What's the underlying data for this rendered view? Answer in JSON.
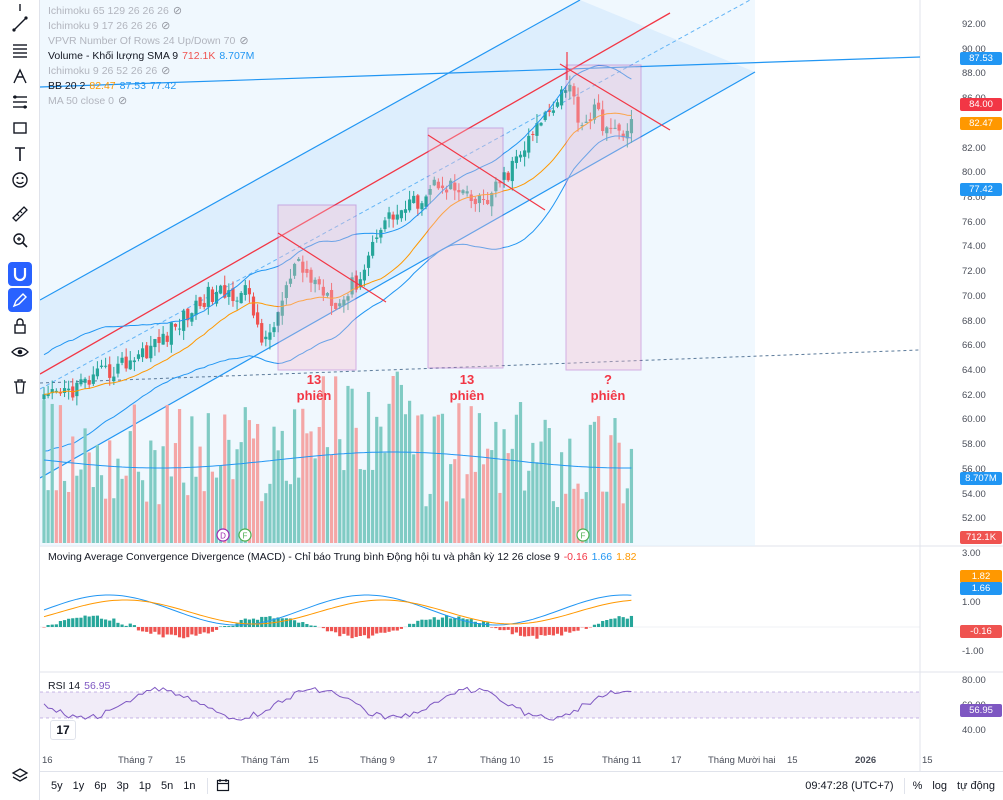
{
  "legend": {
    "items": [
      {
        "name": "Ichimoku 65 129 26 26 26",
        "dim": true
      },
      {
        "name": "Ichimoku 9 17 26 26 26",
        "dim": true
      },
      {
        "name": "VPVR Number Of Rows 24 Up/Down 70",
        "dim": true
      },
      {
        "name": "Volume - Khối lượng SMA 9",
        "dim": false,
        "v1": "712.1K",
        "v2": "8.707M"
      },
      {
        "name": "Ichimoku 9 26 52 26 26",
        "dim": true
      },
      {
        "name": "BB 20 2",
        "dim": false,
        "v1": "82.47",
        "v2": "87.53",
        "v3": "77.42"
      },
      {
        "name": "MA 50 close 0",
        "dim": true
      }
    ]
  },
  "macd_legend": {
    "name": "Moving Average Convergence Divergence (MACD) - Chỉ báo Trung bình Động hội tu và phân kỳ 12 26 close 9",
    "v1": "-0.16",
    "v2": "1.66",
    "v3": "1.82"
  },
  "rsi_legend": {
    "name": "RSI 14",
    "v1": "56.95"
  },
  "price_axis": [
    "92.00",
    "90.00",
    "88.00",
    "86.00",
    "84.00",
    "82.00",
    "80.00",
    "78.00",
    "76.00",
    "74.00",
    "72.00",
    "70.00",
    "68.00",
    "66.00",
    "64.00",
    "62.00",
    "60.00",
    "58.00",
    "56.00",
    "54.00",
    "52.00"
  ],
  "price_tags": {
    "last": "84.00",
    "bb_upper": "87.53",
    "bb_basis": "82.47",
    "bb_lower": "77.42",
    "vol_sma": "8.707M",
    "vol": "712.1K"
  },
  "macd_axis": [
    "3.00",
    "2.00",
    "1.00",
    "-1.00"
  ],
  "macd_tags": {
    "signal": "1.82",
    "macd": "1.66",
    "hist": "-0.16"
  },
  "rsi_axis": [
    "80.00",
    "60.00",
    "40.00"
  ],
  "rsi_tag": "56.95",
  "time_axis": [
    "16",
    "Tháng 7",
    "15",
    "Tháng Tám",
    "15",
    "Tháng 9",
    "17",
    "Tháng 10",
    "15",
    "Tháng 11",
    "17",
    "Tháng Mười hai",
    "15",
    "2026",
    "15"
  ],
  "annotations": [
    {
      "n": "13",
      "w": "phiên"
    },
    {
      "n": "13",
      "w": "phiên"
    },
    {
      "n": "?",
      "w": "phiên"
    }
  ],
  "event_badges": [
    "D",
    "F",
    "F"
  ],
  "timeframes": [
    "5y",
    "1y",
    "6p",
    "3p",
    "1p",
    "5n",
    "1n"
  ],
  "status": {
    "clock": "09:47:28 (UTC+7)",
    "percent": "%",
    "log": "log",
    "auto": "tự động"
  },
  "tv_logo": "17",
  "colors": {
    "accent": "#2962ff",
    "up": "#26a69a",
    "down": "#ef5350",
    "bb": "#2196f3",
    "ma": "#ff9800",
    "macd": "#2196f3",
    "signal": "#ff9800",
    "rsi": "#7e57c2",
    "box": "#9c27b0",
    "redline": "#f23645"
  },
  "icons": [
    "cursor-icon",
    "trend-line-icon",
    "horizontal-lines-icon",
    "pitchfork-icon",
    "fib-icon",
    "rectangle-icon",
    "text-icon",
    "emoji-icon",
    "ruler-icon",
    "zoom-icon",
    "magnet-icon",
    "lock-draw-icon",
    "lock-icon",
    "eye-icon",
    "trash-icon",
    "layers-icon"
  ]
}
